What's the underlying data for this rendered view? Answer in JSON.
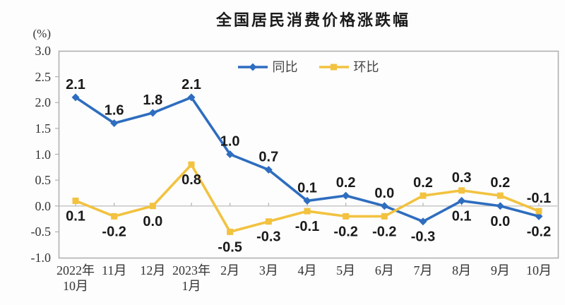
{
  "title": "全国居民消费价格涨跌幅",
  "unit_label": "(%)",
  "colors": {
    "background": "#fdfdfd",
    "axis": "#b0b0b0",
    "zero_line": "#c6c6c6",
    "label_text": "#1a1a1a",
    "tick_text": "#333333",
    "series_blue": "#2e6dbf",
    "series_yellow": "#f2c240"
  },
  "chart_data": {
    "type": "line",
    "title": "全国居民消费价格涨跌幅",
    "ylabel": "(%)",
    "xlabel": "",
    "ylim": [
      -1.0,
      3.0
    ],
    "ytick_step": 0.5,
    "ytick_labels": [
      "3.0",
      "2.5",
      "2.0",
      "1.5",
      "1.0",
      "0.5",
      "0.0",
      "-0.5",
      "-1.0"
    ],
    "grid": "zero-line-only",
    "legend_position": "top-center",
    "categories": [
      [
        "2022年",
        "10月"
      ],
      [
        "11月"
      ],
      [
        "12月"
      ],
      [
        "2023年",
        "1月"
      ],
      [
        "2月"
      ],
      [
        "3月"
      ],
      [
        "4月"
      ],
      [
        "5月"
      ],
      [
        "6月"
      ],
      [
        "7月"
      ],
      [
        "8月"
      ],
      [
        "9月"
      ],
      [
        "10月"
      ]
    ],
    "series": [
      {
        "name": "同比",
        "color": "#2e6dbf",
        "marker": "diamond",
        "values": [
          2.1,
          1.6,
          1.8,
          2.1,
          1.0,
          0.7,
          0.1,
          0.2,
          0.0,
          -0.3,
          0.1,
          0.0,
          -0.2
        ],
        "label_side": [
          "above",
          "above",
          "above",
          "above",
          "above",
          "above",
          "above",
          "above",
          "above",
          "below",
          "below",
          "below",
          "below"
        ]
      },
      {
        "name": "环比",
        "color": "#f2c240",
        "marker": "square",
        "values": [
          0.1,
          -0.2,
          0.0,
          0.8,
          -0.5,
          -0.3,
          -0.1,
          -0.2,
          -0.2,
          0.2,
          0.3,
          0.2,
          -0.1
        ],
        "label_side": [
          "below",
          "below",
          "below",
          "below",
          "below",
          "below",
          "below",
          "below",
          "below",
          "above",
          "above",
          "above",
          "above"
        ]
      }
    ]
  }
}
